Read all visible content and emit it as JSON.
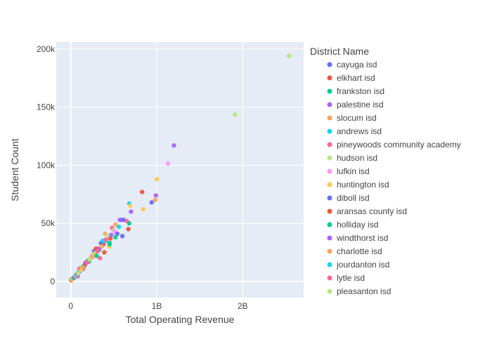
{
  "chart_data": {
    "type": "scatter",
    "xlabel": "Total Operating Revenue",
    "ylabel": "Student Count",
    "x_tick_labels": [
      "0",
      "1B",
      "2B"
    ],
    "x_ticks": [
      0,
      1000000000,
      2000000000
    ],
    "y_tick_labels": [
      "0",
      "50k",
      "100k",
      "150k",
      "200k"
    ],
    "y_ticks": [
      0,
      50000,
      100000,
      150000,
      200000
    ],
    "xlim": [
      -170000000,
      2710000000
    ],
    "ylim": [
      -14000,
      206000
    ],
    "grid": true,
    "legend_title": "District Name",
    "legend_position": "right",
    "plot_background": "#e5ecf6",
    "series": [
      {
        "name": "cayuga isd",
        "color": "#636efa",
        "x": [
          10000000,
          60000000,
          100000000,
          150000000,
          270000000,
          580000000,
          600000000,
          940000000
        ],
        "y": [
          1500,
          5500,
          8500,
          12000,
          26000,
          53000,
          39000,
          68000
        ]
      },
      {
        "name": "elkhart isd",
        "color": "#ef553b",
        "x": [
          20000000,
          90000000,
          130000000,
          170000000,
          290000000,
          380000000,
          670000000,
          830000000
        ],
        "y": [
          2500,
          7500,
          11000,
          16000,
          28000,
          32000,
          45000,
          77000
        ]
      },
      {
        "name": "frankston isd",
        "color": "#00cc96",
        "x": [
          15000000,
          70000000,
          120000000,
          210000000,
          330000000,
          450000000,
          680000000
        ],
        "y": [
          1800,
          6000,
          10000,
          17000,
          27000,
          33000,
          50000
        ]
      },
      {
        "name": "palestine isd",
        "color": "#ab63fa",
        "x": [
          5000000,
          80000000,
          140000000,
          250000000,
          570000000,
          700000000,
          990000000,
          1200000000
        ],
        "y": [
          1000,
          4500,
          10500,
          22000,
          53000,
          60000,
          74000,
          117000
        ]
      },
      {
        "name": "slocum isd",
        "color": "#ffa15a",
        "x": [
          12000000,
          110000000,
          160000000,
          230000000,
          400000000,
          520000000,
          980000000
        ],
        "y": [
          1200,
          9500,
          14000,
          20000,
          41000,
          49000,
          70000
        ]
      },
      {
        "name": "andrews isd",
        "color": "#19d3f3",
        "x": [
          30000000,
          90000000,
          190000000,
          290000000,
          410000000,
          560000000,
          680000000
        ],
        "y": [
          3000,
          8000,
          17000,
          25000,
          35000,
          47000,
          67000
        ]
      },
      {
        "name": "pineywoods community academy",
        "color": "#ff6692",
        "x": [
          8000000,
          100000000,
          200000000,
          340000000,
          480000000,
          650000000
        ],
        "y": [
          800,
          11000,
          18000,
          20000,
          46000,
          52000
        ]
      },
      {
        "name": "hudson isd",
        "color": "#b6e880",
        "x": [
          25000000,
          130000000,
          260000000,
          500000000,
          1910000000,
          2540000000
        ],
        "y": [
          2000,
          12000,
          23000,
          44000,
          143500,
          194000
        ]
      },
      {
        "name": "lufkin isd",
        "color": "#ff97ff",
        "x": [
          40000000,
          150000000,
          240000000,
          510000000,
          1130000000
        ],
        "y": [
          3500,
          13000,
          21000,
          43000,
          101500
        ]
      },
      {
        "name": "huntington isd",
        "color": "#fecb52",
        "x": [
          18000000,
          120000000,
          280000000,
          450000000,
          690000000,
          840000000,
          1000000000
        ],
        "y": [
          1500,
          10000,
          24000,
          30000,
          65000,
          62000,
          88000
        ]
      },
      {
        "name": "diboll isd",
        "color": "#636efa",
        "x": [
          50000000,
          170000000,
          350000000,
          540000000,
          610000000
        ],
        "y": [
          4000,
          15000,
          33000,
          41000,
          53000
        ]
      },
      {
        "name": "aransas county isd",
        "color": "#ef553b",
        "x": [
          60000000,
          160000000,
          310000000,
          390000000,
          460000000
        ],
        "y": [
          5000,
          14000,
          28000,
          25000,
          37000
        ]
      },
      {
        "name": "holliday isd",
        "color": "#00cc96",
        "x": [
          35000000,
          140000000,
          300000000,
          450000000,
          520000000
        ],
        "y": [
          3000,
          12500,
          22000,
          32000,
          38000
        ]
      },
      {
        "name": "windthorst isd",
        "color": "#ab63fa",
        "x": [
          45000000,
          180000000,
          330000000,
          470000000
        ],
        "y": [
          3800,
          16000,
          28000,
          40000
        ]
      },
      {
        "name": "charlotte isd",
        "color": "#ffa15a",
        "x": [
          55000000,
          140000000,
          250000000,
          360000000
        ],
        "y": [
          4500,
          12000,
          21000,
          30000
        ]
      },
      {
        "name": "jourdanton isd",
        "color": "#19d3f3",
        "x": [
          65000000,
          200000000,
          370000000
        ],
        "y": [
          5500,
          18000,
          35000
        ]
      },
      {
        "name": "lytle isd",
        "color": "#ff6692",
        "x": [
          75000000,
          190000000,
          310000000,
          410000000
        ],
        "y": [
          6500,
          16500,
          26000,
          36000
        ]
      },
      {
        "name": "pleasanton isd",
        "color": "#b6e880",
        "x": [
          85000000,
          220000000,
          420000000
        ],
        "y": [
          7000,
          19000,
          40000
        ]
      }
    ]
  }
}
